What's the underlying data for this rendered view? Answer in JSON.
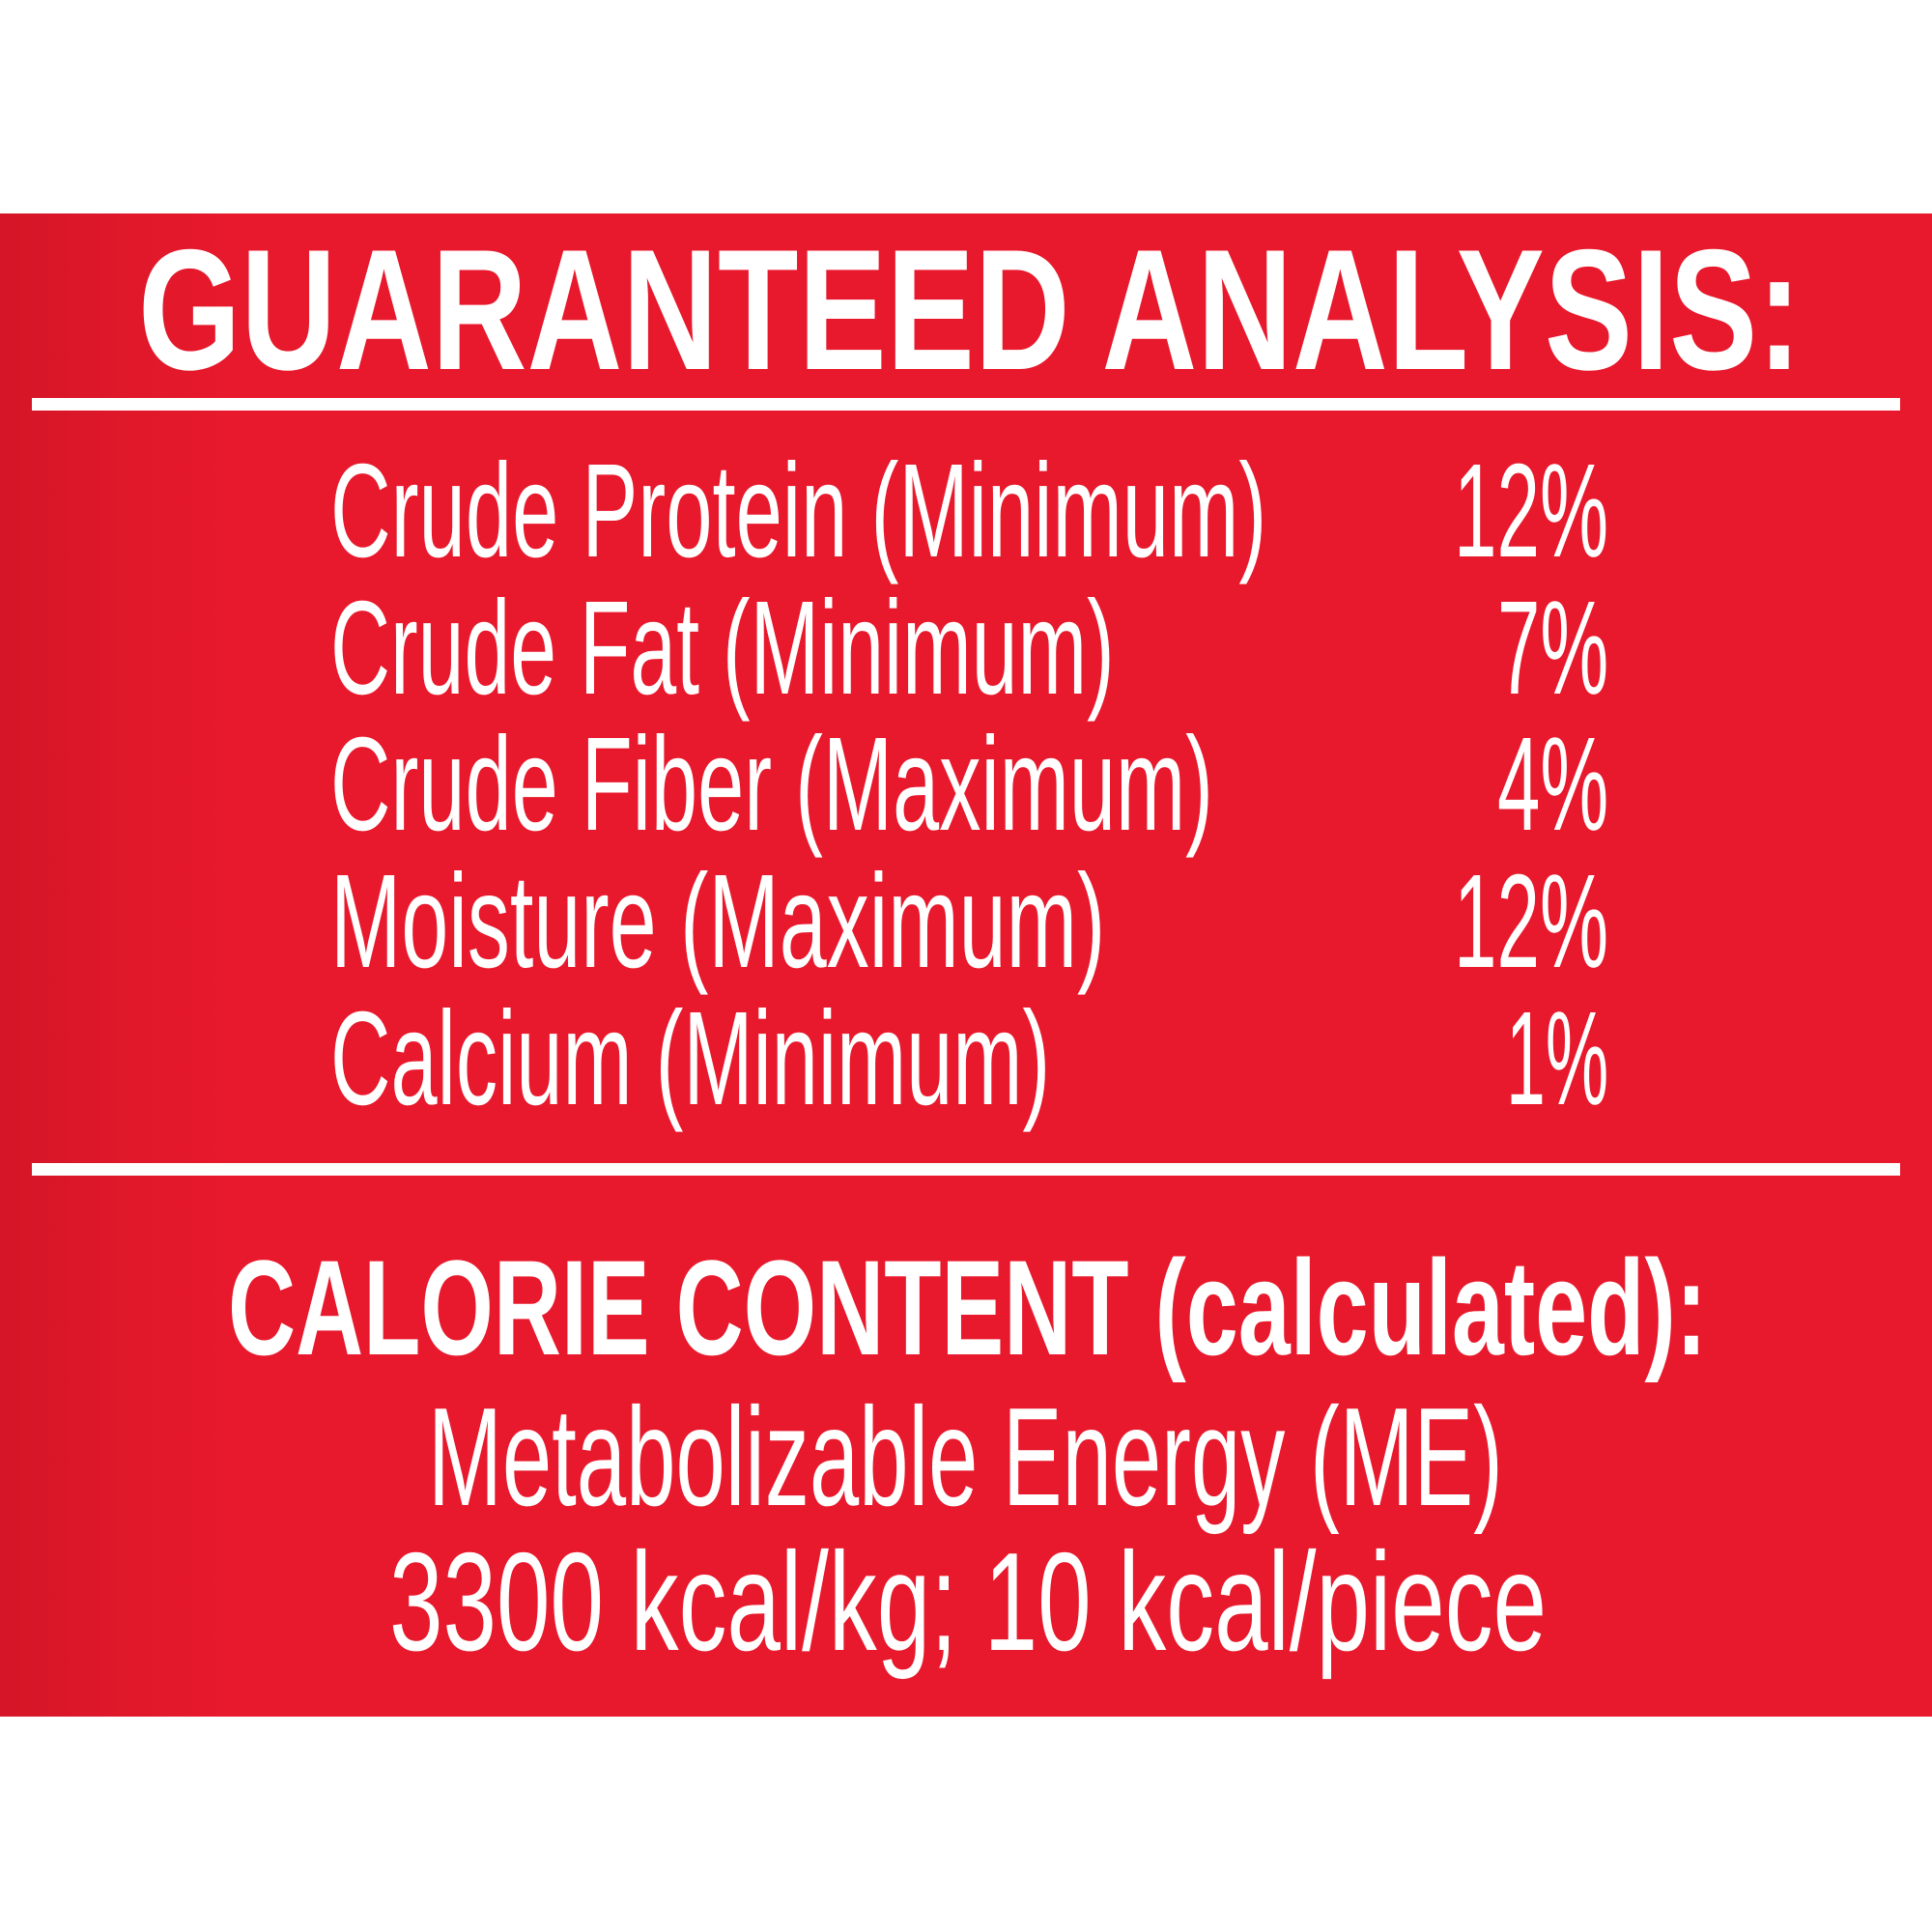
{
  "colors": {
    "panel": "#E8192C",
    "panel_edge": "#D51628",
    "text": "#FFFFFF"
  },
  "title": "GUARANTEED ANALYSIS:",
  "analysis": [
    {
      "label": "Crude Protein (Minimum)",
      "value": "12%"
    },
    {
      "label": "Crude Fat (Minimum)",
      "value": "7%"
    },
    {
      "label": "Crude Fiber (Maximum)",
      "value": "4%"
    },
    {
      "label": "Moisture (Maximum)",
      "value": "12%"
    },
    {
      "label": "Calcium (Minimum)",
      "value": "1%"
    }
  ],
  "calorie": {
    "title": "CALORIE CONTENT (calculated):",
    "line1": "Metabolizable Energy (ME)",
    "line2": "3300 kcal/kg; 10 kcal/piece"
  }
}
